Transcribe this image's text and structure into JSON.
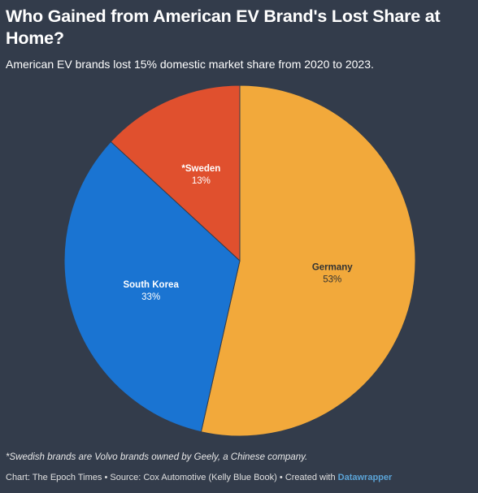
{
  "header": {
    "title": "Who Gained from American EV Brand's Lost Share at Home?",
    "subtitle": "American EV brands lost 15% domestic market share from 2020 to 2023."
  },
  "chart_data": {
    "type": "pie",
    "slices": [
      {
        "label": "Germany",
        "value": 53,
        "value_label": "53%",
        "color": "#f2a93b"
      },
      {
        "label": "South Korea",
        "value": 33,
        "value_label": "33%",
        "color": "#1a74d2"
      },
      {
        "label": "*Sweden",
        "value": 13,
        "value_label": "13%",
        "color": "#e0502e"
      }
    ]
  },
  "footer": {
    "note": "*Swedish brands are Volvo brands owned by Geely, a Chinese company.",
    "credit_chart": "Chart: The Epoch Times",
    "credit_source": "Source: Cox Automotive (Kelly Blue Book)",
    "credit_created": "Created with",
    "credit_brand": "Datawrapper",
    "separator": "•"
  }
}
